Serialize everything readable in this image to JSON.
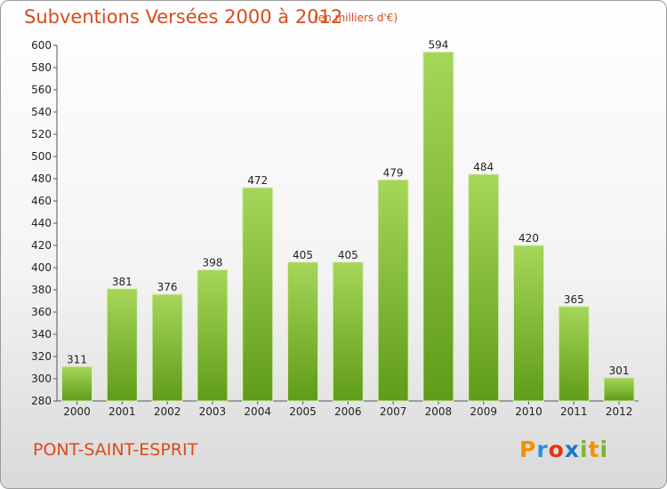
{
  "header": {
    "title": "Subventions Versées 2000 à 2012",
    "subtitle": "(en milliers d'€)"
  },
  "footer": {
    "commune": "PONT-SAINT-ESPRIT",
    "logo_letters": [
      "P",
      "r",
      "o",
      "x",
      "i",
      "t",
      "i"
    ]
  },
  "colors": {
    "title": "#d94b1a",
    "bar_top": "#a6d65a",
    "bar_bottom": "#5f9c18",
    "logo": [
      "#f39200",
      "#2f8fd8",
      "#e63312",
      "#1a77c4",
      "#7ab62c",
      "#f39200",
      "#7ab62c"
    ]
  },
  "chart_data": {
    "type": "bar",
    "title": "Subventions Versées 2000 à 2012",
    "subtitle": "(en milliers d'€)",
    "categories": [
      "2000",
      "2001",
      "2002",
      "2003",
      "2004",
      "2005",
      "2006",
      "2007",
      "2008",
      "2009",
      "2010",
      "2011",
      "2012"
    ],
    "values": [
      311,
      381,
      376,
      398,
      472,
      405,
      405,
      479,
      594,
      484,
      420,
      365,
      301
    ],
    "ylim": [
      280,
      600
    ],
    "yticks": [
      280,
      300,
      320,
      340,
      360,
      380,
      400,
      420,
      440,
      460,
      480,
      500,
      520,
      540,
      560,
      580,
      600
    ],
    "grid": false,
    "legend": "none"
  }
}
